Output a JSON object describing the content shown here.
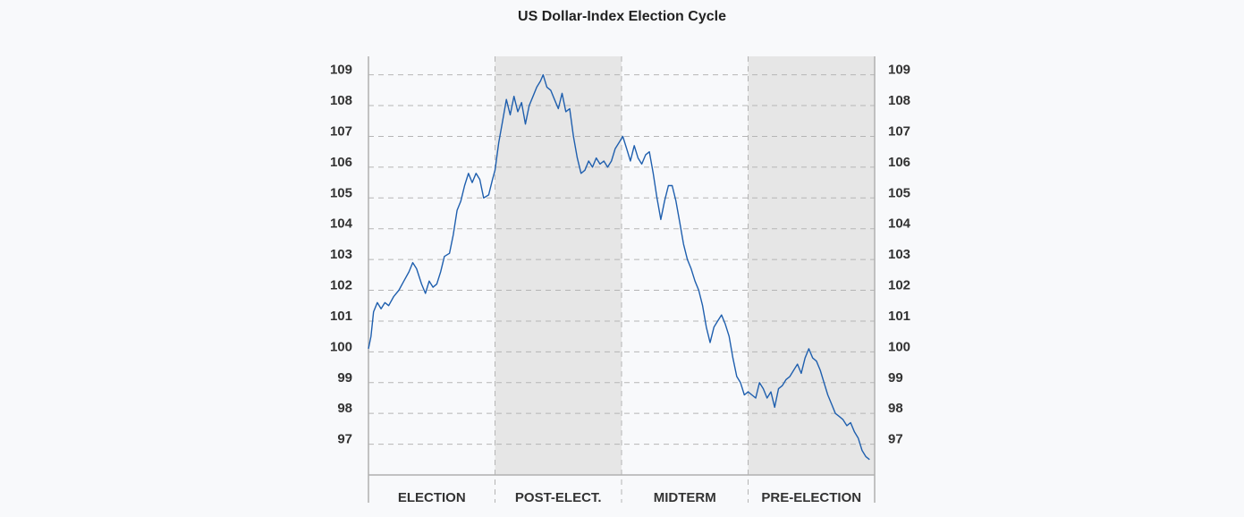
{
  "chart_data": {
    "type": "line",
    "title": "US Dollar-Index Election Cycle",
    "ylim": [
      96.0,
      109.6
    ],
    "yticks": [
      97,
      98,
      99,
      100,
      101,
      102,
      103,
      104,
      105,
      106,
      107,
      108,
      109
    ],
    "grid": true,
    "categories": [
      "ELECTION",
      "POST-ELECT.",
      "MIDTERM",
      "PRE-ELECTION"
    ],
    "shaded_categories": [
      "POST-ELECT.",
      "PRE-ELECTION"
    ],
    "x_range": [
      0,
      4
    ],
    "series": [
      {
        "color": "#1f5fae",
        "points": [
          [
            0.0,
            100.1
          ],
          [
            0.02,
            100.5
          ],
          [
            0.04,
            101.3
          ],
          [
            0.07,
            101.6
          ],
          [
            0.1,
            101.4
          ],
          [
            0.13,
            101.6
          ],
          [
            0.16,
            101.5
          ],
          [
            0.2,
            101.8
          ],
          [
            0.24,
            102.0
          ],
          [
            0.28,
            102.3
          ],
          [
            0.32,
            102.6
          ],
          [
            0.35,
            102.9
          ],
          [
            0.38,
            102.7
          ],
          [
            0.42,
            102.2
          ],
          [
            0.45,
            101.9
          ],
          [
            0.48,
            102.3
          ],
          [
            0.51,
            102.1
          ],
          [
            0.54,
            102.2
          ],
          [
            0.57,
            102.6
          ],
          [
            0.6,
            103.1
          ],
          [
            0.64,
            103.2
          ],
          [
            0.67,
            103.8
          ],
          [
            0.7,
            104.6
          ],
          [
            0.73,
            104.9
          ],
          [
            0.76,
            105.4
          ],
          [
            0.79,
            105.8
          ],
          [
            0.82,
            105.5
          ],
          [
            0.85,
            105.8
          ],
          [
            0.88,
            105.6
          ],
          [
            0.91,
            105.0
          ],
          [
            0.95,
            105.1
          ],
          [
            0.98,
            105.6
          ],
          [
            1.0,
            105.9
          ],
          [
            1.03,
            106.8
          ],
          [
            1.06,
            107.5
          ],
          [
            1.09,
            108.2
          ],
          [
            1.12,
            107.7
          ],
          [
            1.15,
            108.3
          ],
          [
            1.18,
            107.8
          ],
          [
            1.21,
            108.1
          ],
          [
            1.24,
            107.4
          ],
          [
            1.27,
            108.0
          ],
          [
            1.3,
            108.3
          ],
          [
            1.33,
            108.6
          ],
          [
            1.36,
            108.8
          ],
          [
            1.38,
            109.0
          ],
          [
            1.41,
            108.6
          ],
          [
            1.44,
            108.5
          ],
          [
            1.47,
            108.2
          ],
          [
            1.5,
            107.9
          ],
          [
            1.53,
            108.4
          ],
          [
            1.56,
            107.8
          ],
          [
            1.59,
            107.9
          ],
          [
            1.62,
            107.0
          ],
          [
            1.65,
            106.3
          ],
          [
            1.68,
            105.8
          ],
          [
            1.71,
            105.9
          ],
          [
            1.74,
            106.2
          ],
          [
            1.77,
            106.0
          ],
          [
            1.8,
            106.3
          ],
          [
            1.83,
            106.1
          ],
          [
            1.86,
            106.2
          ],
          [
            1.89,
            106.0
          ],
          [
            1.92,
            106.2
          ],
          [
            1.95,
            106.6
          ],
          [
            1.98,
            106.8
          ],
          [
            2.01,
            107.0
          ],
          [
            2.04,
            106.6
          ],
          [
            2.07,
            106.2
          ],
          [
            2.1,
            106.7
          ],
          [
            2.13,
            106.3
          ],
          [
            2.16,
            106.1
          ],
          [
            2.19,
            106.4
          ],
          [
            2.22,
            106.5
          ],
          [
            2.25,
            105.8
          ],
          [
            2.28,
            105.0
          ],
          [
            2.31,
            104.3
          ],
          [
            2.34,
            104.9
          ],
          [
            2.37,
            105.4
          ],
          [
            2.4,
            105.4
          ],
          [
            2.43,
            104.9
          ],
          [
            2.46,
            104.2
          ],
          [
            2.49,
            103.5
          ],
          [
            2.52,
            103.0
          ],
          [
            2.55,
            102.7
          ],
          [
            2.58,
            102.3
          ],
          [
            2.61,
            102.0
          ],
          [
            2.64,
            101.5
          ],
          [
            2.67,
            100.8
          ],
          [
            2.7,
            100.3
          ],
          [
            2.73,
            100.8
          ],
          [
            2.76,
            101.0
          ],
          [
            2.79,
            101.2
          ],
          [
            2.82,
            100.9
          ],
          [
            2.85,
            100.5
          ],
          [
            2.88,
            99.8
          ],
          [
            2.91,
            99.2
          ],
          [
            2.94,
            99.0
          ],
          [
            2.97,
            98.6
          ],
          [
            3.0,
            98.7
          ],
          [
            3.03,
            98.6
          ],
          [
            3.06,
            98.5
          ],
          [
            3.09,
            99.0
          ],
          [
            3.12,
            98.8
          ],
          [
            3.15,
            98.5
          ],
          [
            3.18,
            98.7
          ],
          [
            3.21,
            98.2
          ],
          [
            3.24,
            98.8
          ],
          [
            3.27,
            98.9
          ],
          [
            3.3,
            99.1
          ],
          [
            3.33,
            99.2
          ],
          [
            3.36,
            99.4
          ],
          [
            3.39,
            99.6
          ],
          [
            3.42,
            99.3
          ],
          [
            3.45,
            99.8
          ],
          [
            3.48,
            100.1
          ],
          [
            3.51,
            99.8
          ],
          [
            3.54,
            99.7
          ],
          [
            3.57,
            99.4
          ],
          [
            3.6,
            99.0
          ],
          [
            3.63,
            98.6
          ],
          [
            3.66,
            98.3
          ],
          [
            3.69,
            98.0
          ],
          [
            3.72,
            97.9
          ],
          [
            3.75,
            97.8
          ],
          [
            3.78,
            97.6
          ],
          [
            3.81,
            97.7
          ],
          [
            3.84,
            97.4
          ],
          [
            3.87,
            97.2
          ],
          [
            3.9,
            96.8
          ],
          [
            3.93,
            96.6
          ],
          [
            3.96,
            96.5
          ]
        ]
      }
    ]
  }
}
